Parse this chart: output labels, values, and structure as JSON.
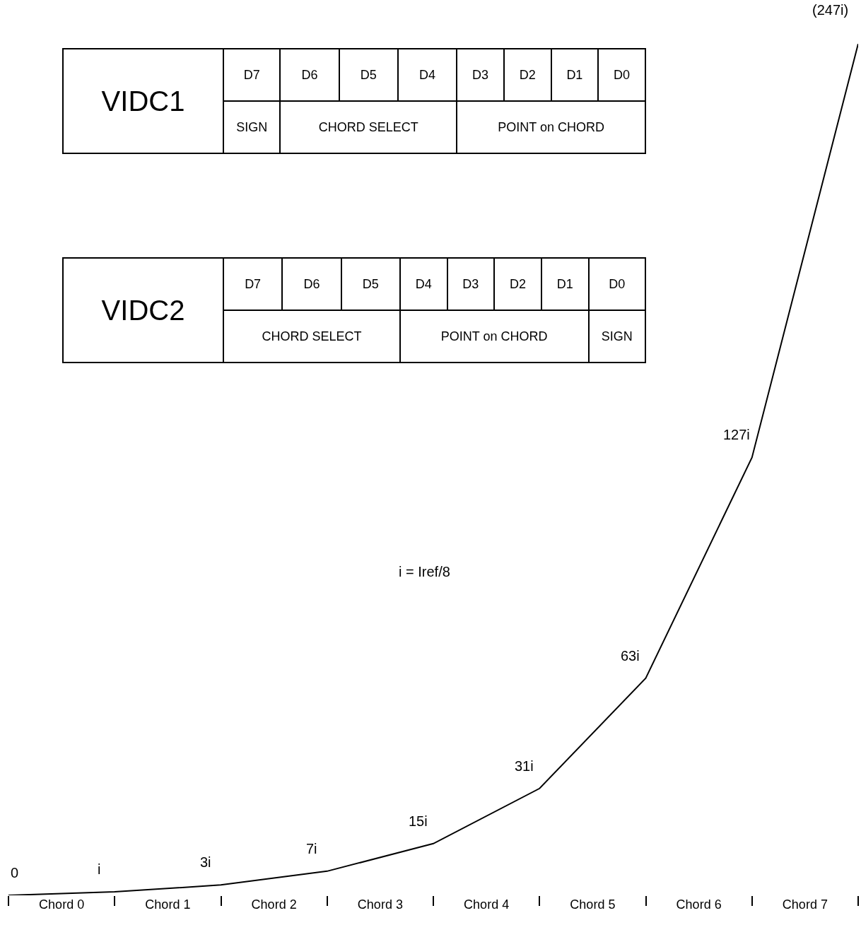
{
  "chart_data": [
    {
      "type": "other",
      "title": "VIDC1",
      "categories": [
        "D7",
        "D6",
        "D5",
        "D4",
        "D3",
        "D2",
        "D1",
        "D0"
      ],
      "annotations": [
        {
          "text": "SIGN",
          "x": "D7"
        },
        {
          "text": "CHORD SELECT",
          "x": "D6"
        },
        {
          "text": "POINT on CHORD",
          "x": "D3"
        }
      ]
    },
    {
      "type": "other",
      "title": "VIDC2",
      "categories": [
        "D7",
        "D6",
        "D5",
        "D4",
        "D3",
        "D2",
        "D1",
        "D0"
      ],
      "annotations": [
        {
          "text": "CHORD SELECT",
          "x": "D7"
        },
        {
          "text": "POINT on CHORD",
          "x": "D4"
        },
        {
          "text": "SIGN",
          "x": "D0"
        }
      ]
    },
    {
      "type": "line",
      "categories": [
        null,
        "Chord 0",
        null,
        "Chord 1",
        null,
        "Chord 2",
        null,
        "Chord 3",
        null,
        "Chord 4",
        null,
        "Chord 5",
        null,
        "Chord 6",
        null,
        "Chord 7",
        null
      ],
      "values": [
        0,
        null,
        1,
        null,
        3,
        null,
        7,
        null,
        15,
        null,
        31,
        null,
        63,
        null,
        127,
        null,
        247
      ],
      "value_labels": [
        "0",
        null,
        "i",
        null,
        "3i",
        null,
        "7i",
        null,
        "15i",
        null,
        "31i",
        null,
        "63i",
        null,
        "127i",
        null,
        "(247i)"
      ],
      "color": "#000000",
      "tick_labels": "x",
      "annotations": [
        "i = Iref/8"
      ]
    }
  ]
}
